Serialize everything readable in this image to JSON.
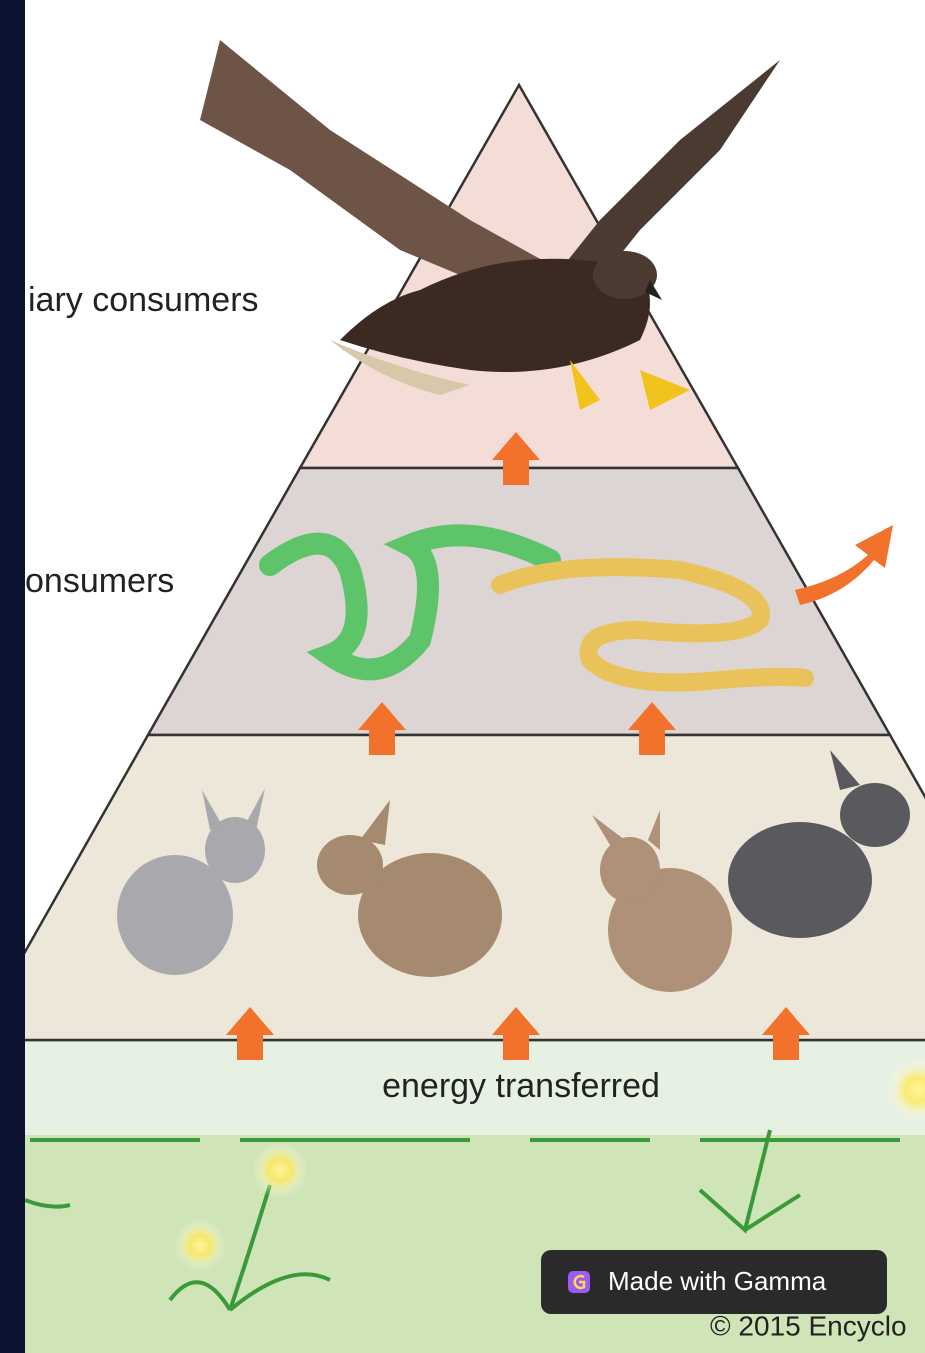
{
  "labels": {
    "tertiary": "iary consumers",
    "secondary": "onsumers",
    "energy": "energy transferred",
    "copyright": "© 2015 Encyclo"
  },
  "badge": {
    "text": "Made with Gamma"
  }
}
